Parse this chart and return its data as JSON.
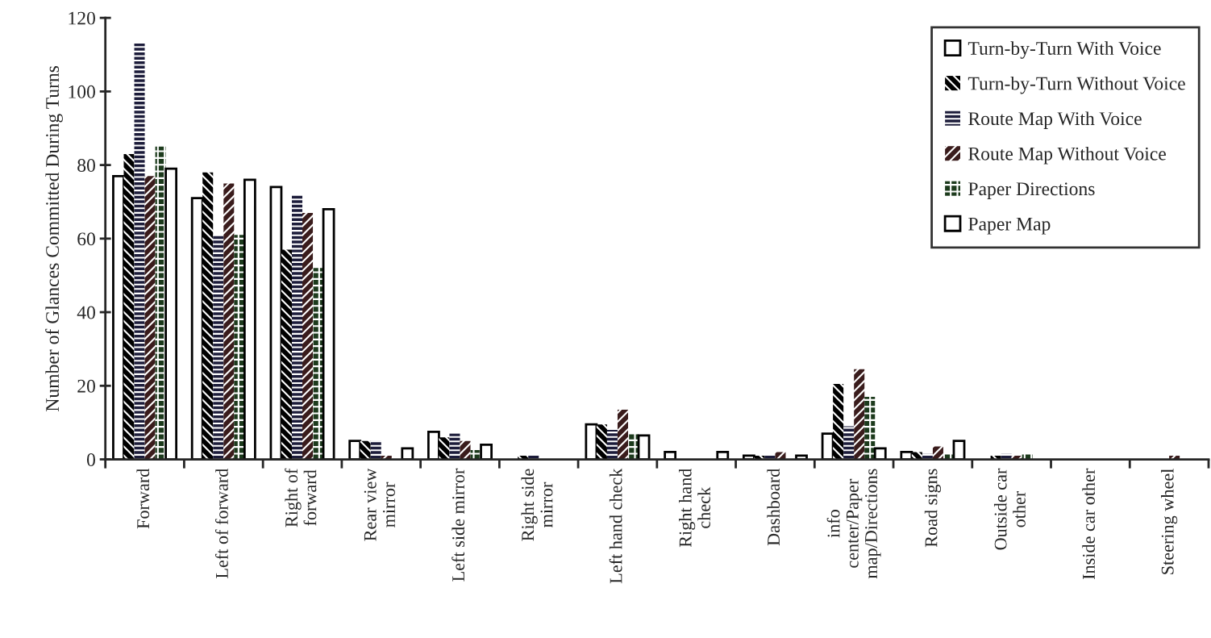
{
  "chart_data": {
    "type": "bar",
    "ylabel": "Number of Glances Committed During Turns",
    "categories": [
      "Forward",
      "Left of forward",
      "Right of\nforward",
      "Rear view\nmirror",
      "Left side mirror",
      "Right side\nmirror",
      "Left hand check",
      "Right hand\ncheck",
      "Dashboard",
      "info\ncenter/Paper\nmap/Directions",
      "Road signs",
      "Outside car\nother",
      "Inside car other",
      "Steering wheel"
    ],
    "series": [
      {
        "name": "Turn-by-Turn With Voice",
        "color": "#ffffff",
        "values": [
          77,
          71,
          74,
          5,
          7.5,
          0,
          9.5,
          2,
          1,
          7,
          2,
          0,
          0,
          0
        ]
      },
      {
        "name": "Turn-by-Turn Without Voice",
        "color": "#000000",
        "values": [
          83,
          78,
          57,
          5,
          6,
          1,
          9.5,
          0,
          1,
          20.5,
          2,
          1,
          0,
          0
        ]
      },
      {
        "name": "Route Map With Voice",
        "color": "#1c1c3a",
        "values": [
          113,
          61,
          72,
          5,
          7,
          1,
          8,
          0,
          1,
          9,
          1.5,
          1.5,
          0,
          0
        ]
      },
      {
        "name": "Route Map Without Voice",
        "color": "#3a1c1c",
        "values": [
          77,
          75,
          67,
          1,
          5,
          0,
          13.5,
          0,
          2,
          24.5,
          3.5,
          1,
          0,
          1
        ]
      },
      {
        "name": "Paper Directions",
        "color": "#1c3a1c",
        "values": [
          85,
          61,
          52,
          0,
          2.5,
          0,
          7,
          0,
          0,
          17,
          1.5,
          1.5,
          0,
          0
        ]
      },
      {
        "name": "Paper Map",
        "color": "#ffffff",
        "values": [
          79,
          76,
          68,
          3,
          4,
          0,
          6.5,
          2,
          1,
          3,
          5,
          0,
          0,
          0
        ]
      }
    ],
    "ylim": [
      0,
      120
    ],
    "yticks": [
      0,
      20,
      40,
      60,
      80,
      100,
      120
    ],
    "grid": false,
    "legend": "top right"
  }
}
